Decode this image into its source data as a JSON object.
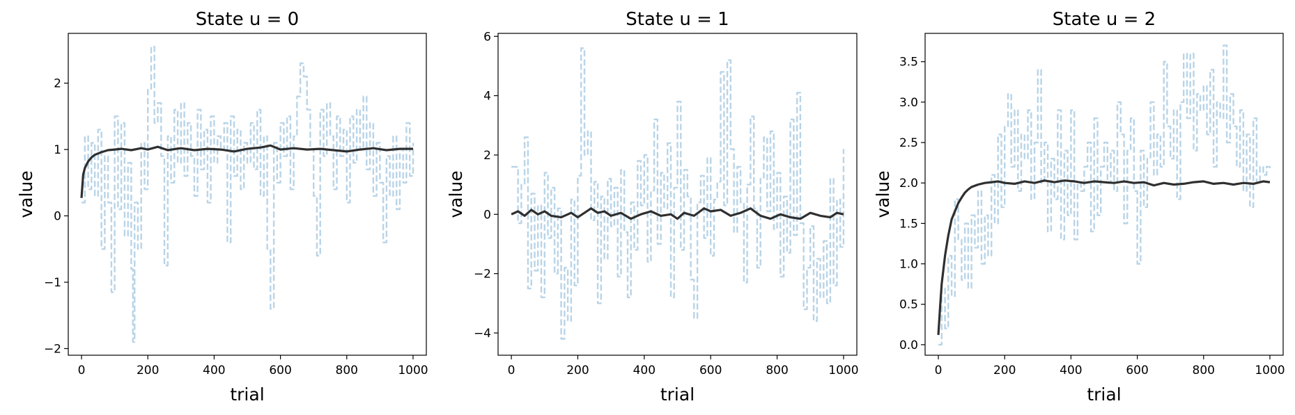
{
  "chart_data": [
    {
      "type": "line",
      "title": "State u = 0",
      "xlabel": "trial",
      "ylabel": "value",
      "xlim": [
        -40,
        1040
      ],
      "ylim": [
        -2.1,
        2.75
      ],
      "xticks": [
        0,
        200,
        400,
        600,
        800,
        1000
      ],
      "xtick_labels": [
        "0",
        "200",
        "400",
        "600",
        "800",
        "1000"
      ],
      "yticks": [
        -2,
        -1,
        0,
        1,
        2
      ],
      "ytick_labels": [
        "−2",
        "−1",
        "0",
        "1",
        "2"
      ],
      "grid": false,
      "series": [
        {
          "style": "dashed",
          "color": "#b9d4e7",
          "x": [
            0,
            10,
            20,
            30,
            40,
            50,
            60,
            70,
            80,
            90,
            100,
            110,
            120,
            130,
            140,
            150,
            155,
            160,
            170,
            180,
            190,
            200,
            210,
            220,
            230,
            240,
            250,
            260,
            270,
            280,
            290,
            300,
            310,
            320,
            330,
            340,
            350,
            360,
            370,
            380,
            390,
            400,
            410,
            420,
            430,
            440,
            450,
            460,
            470,
            480,
            490,
            500,
            510,
            520,
            530,
            540,
            550,
            560,
            570,
            580,
            590,
            600,
            610,
            620,
            630,
            640,
            650,
            660,
            670,
            680,
            690,
            700,
            710,
            720,
            730,
            740,
            750,
            760,
            770,
            780,
            790,
            800,
            810,
            820,
            830,
            840,
            850,
            860,
            870,
            880,
            890,
            900,
            910,
            920,
            930,
            940,
            950,
            960,
            970,
            980,
            990,
            1000
          ],
          "y": [
            0.2,
            1.2,
            0.4,
            1.1,
            0.3,
            1.3,
            -0.5,
            0.9,
            0.2,
            -1.15,
            1.5,
            0.1,
            1.4,
            -0.3,
            0.8,
            -0.8,
            -1.9,
            0.2,
            -0.5,
            1.1,
            0.4,
            1.9,
            2.55,
            1.4,
            1.7,
            0.9,
            -0.75,
            1.2,
            0.5,
            1.6,
            0.8,
            1.7,
            0.6,
            1.4,
            0.9,
            0.3,
            1.6,
            0.7,
            1.3,
            0.2,
            1.5,
            0.8,
            1.2,
            1.0,
            1.4,
            -0.4,
            1.5,
            0.6,
            1.3,
            0.4,
            1.1,
            0.8,
            1.4,
            0.7,
            1.6,
            0.3,
            1.2,
            -0.5,
            -1.4,
            1.1,
            0.5,
            1.4,
            0.9,
            1.5,
            0.4,
            1.2,
            1.8,
            2.3,
            2.1,
            1.6,
            1.0,
            0.3,
            -0.6,
            1.6,
            0.9,
            1.7,
            1.2,
            0.4,
            1.5,
            0.9,
            1.3,
            0.2,
            1.5,
            0.8,
            1.6,
            1.0,
            1.8,
            0.7,
            1.4,
            0.3,
            1.1,
            0.5,
            -0.4,
            0.9,
            0.3,
            1.2,
            0.1,
            1.0,
            0.5,
            1.4,
            0.6,
            1.1
          ]
        },
        {
          "style": "solid",
          "color": "#2f2f2f",
          "x": [
            0,
            5,
            10,
            20,
            30,
            40,
            60,
            80,
            100,
            120,
            150,
            180,
            200,
            230,
            260,
            300,
            340,
            380,
            420,
            460,
            500,
            540,
            570,
            600,
            640,
            680,
            720,
            760,
            800,
            840,
            880,
            920,
            960,
            1000
          ],
          "y": [
            0.27,
            0.62,
            0.72,
            0.82,
            0.88,
            0.92,
            0.96,
            0.99,
            1.0,
            1.01,
            0.99,
            1.02,
            1.0,
            1.04,
            0.99,
            1.02,
            0.99,
            1.01,
            1.0,
            0.97,
            1.01,
            1.03,
            1.06,
            1.0,
            1.02,
            1.0,
            1.01,
            0.99,
            0.97,
            1.0,
            1.02,
            0.99,
            1.01,
            1.01
          ]
        }
      ]
    },
    {
      "type": "line",
      "title": "State u = 1",
      "xlabel": "trial",
      "ylabel": "value",
      "xlim": [
        -40,
        1040
      ],
      "ylim": [
        -4.75,
        6.1
      ],
      "xticks": [
        0,
        200,
        400,
        600,
        800,
        1000
      ],
      "xtick_labels": [
        "0",
        "200",
        "400",
        "600",
        "800",
        "1000"
      ],
      "yticks": [
        -4,
        -2,
        0,
        2,
        4,
        6
      ],
      "ytick_labels": [
        "−4",
        "−2",
        "0",
        "2",
        "4",
        "6"
      ],
      "grid": false,
      "series": [
        {
          "style": "dashed",
          "color": "#b9d4e7",
          "x": [
            0,
            10,
            20,
            30,
            40,
            50,
            60,
            70,
            80,
            90,
            100,
            110,
            120,
            130,
            140,
            150,
            160,
            170,
            180,
            190,
            200,
            210,
            220,
            230,
            240,
            250,
            260,
            270,
            280,
            290,
            300,
            310,
            320,
            330,
            340,
            350,
            360,
            370,
            380,
            390,
            400,
            410,
            420,
            430,
            440,
            450,
            460,
            470,
            480,
            490,
            500,
            510,
            520,
            530,
            540,
            550,
            560,
            570,
            580,
            590,
            600,
            610,
            620,
            630,
            640,
            650,
            660,
            670,
            680,
            690,
            700,
            710,
            720,
            730,
            740,
            750,
            760,
            770,
            780,
            790,
            800,
            810,
            820,
            830,
            840,
            850,
            860,
            870,
            880,
            890,
            900,
            910,
            920,
            930,
            940,
            950,
            960,
            970,
            980,
            990,
            1000
          ],
          "y": [
            1.6,
            1.6,
            -0.3,
            1.0,
            2.6,
            -2.5,
            0.7,
            -1.9,
            0.3,
            -2.8,
            1.4,
            -0.8,
            0.9,
            -2.0,
            0.2,
            -4.2,
            -1.8,
            -3.6,
            0.5,
            -2.4,
            1.3,
            5.6,
            2.0,
            2.8,
            -0.2,
            1.1,
            -3.0,
            0.6,
            -1.5,
            1.2,
            -0.4,
            0.9,
            -2.1,
            1.5,
            -0.6,
            -2.8,
            0.4,
            -1.2,
            1.8,
            0.3,
            2.0,
            -1.6,
            0.8,
            3.2,
            -1.0,
            1.4,
            0.2,
            2.4,
            -2.8,
            0.9,
            3.8,
            -1.2,
            1.5,
            0.6,
            -2.2,
            -3.5,
            0.4,
            1.3,
            -0.8,
            1.9,
            -1.4,
            0.5,
            1.1,
            4.8,
            0.3,
            5.2,
            2.2,
            -0.6,
            1.6,
            0.4,
            -2.3,
            1.0,
            3.3,
            0.2,
            -1.8,
            1.2,
            2.6,
            0.1,
            2.8,
            -0.5,
            1.4,
            -2.1,
            0.6,
            -1.3,
            3.2,
            -0.7,
            4.1,
            -0.3,
            -3.2,
            -1.8,
            -0.4,
            -3.6,
            -1.5,
            -2.8,
            -0.9,
            -3.0,
            1.2,
            -2.4,
            0.5,
            -1.1,
            2.2
          ]
        },
        {
          "style": "solid",
          "color": "#2f2f2f",
          "x": [
            0,
            20,
            40,
            60,
            80,
            100,
            120,
            150,
            180,
            200,
            220,
            240,
            260,
            280,
            300,
            330,
            360,
            390,
            420,
            450,
            480,
            500,
            520,
            550,
            580,
            600,
            630,
            660,
            690,
            720,
            750,
            780,
            810,
            840,
            870,
            900,
            930,
            960,
            980,
            1000
          ],
          "y": [
            0.0,
            0.1,
            -0.05,
            0.15,
            0.0,
            0.1,
            -0.05,
            -0.1,
            0.05,
            -0.1,
            0.05,
            0.2,
            0.05,
            0.1,
            -0.05,
            0.05,
            -0.15,
            0.0,
            0.1,
            -0.05,
            0.0,
            -0.15,
            0.05,
            -0.05,
            0.2,
            0.1,
            0.15,
            -0.05,
            0.05,
            0.2,
            -0.05,
            -0.15,
            0.0,
            -0.1,
            -0.15,
            0.05,
            -0.05,
            -0.1,
            0.05,
            0.0
          ]
        }
      ]
    },
    {
      "type": "line",
      "title": "State u = 2",
      "xlabel": "trial",
      "ylabel": "value",
      "xlim": [
        -40,
        1040
      ],
      "ylim": [
        -0.13,
        3.85
      ],
      "xticks": [
        0,
        200,
        400,
        600,
        800,
        1000
      ],
      "xtick_labels": [
        "0",
        "200",
        "400",
        "600",
        "800",
        "1000"
      ],
      "yticks": [
        0.0,
        0.5,
        1.0,
        1.5,
        2.0,
        2.5,
        3.0,
        3.5
      ],
      "ytick_labels": [
        "0.0",
        "0.5",
        "1.0",
        "1.5",
        "2.0",
        "2.5",
        "3.0",
        "3.5"
      ],
      "grid": false,
      "series": [
        {
          "style": "dashed",
          "color": "#b9d4e7",
          "x": [
            0,
            10,
            20,
            30,
            40,
            50,
            60,
            70,
            80,
            90,
            100,
            110,
            120,
            130,
            140,
            150,
            160,
            170,
            180,
            190,
            200,
            210,
            220,
            230,
            240,
            250,
            260,
            270,
            280,
            290,
            300,
            310,
            320,
            330,
            340,
            350,
            360,
            370,
            380,
            390,
            400,
            410,
            420,
            430,
            440,
            450,
            460,
            470,
            480,
            490,
            500,
            510,
            520,
            530,
            540,
            550,
            560,
            570,
            580,
            590,
            600,
            610,
            620,
            630,
            640,
            650,
            660,
            670,
            680,
            690,
            700,
            710,
            720,
            730,
            740,
            750,
            760,
            770,
            780,
            790,
            800,
            810,
            820,
            830,
            840,
            850,
            860,
            870,
            880,
            890,
            900,
            910,
            920,
            930,
            940,
            950,
            960,
            970,
            980,
            990,
            1000
          ],
          "y": [
            0.0,
            0.7,
            0.2,
            1.1,
            0.6,
            1.8,
            1.3,
            0.8,
            1.5,
            0.7,
            1.6,
            1.2,
            1.9,
            1.0,
            1.6,
            1.1,
            2.1,
            1.5,
            2.6,
            1.7,
            2.7,
            3.1,
            2.2,
            2.9,
            1.9,
            2.6,
            2.3,
            2.9,
            1.8,
            2.5,
            3.4,
            2.0,
            2.5,
            1.4,
            2.3,
            1.8,
            2.9,
            1.3,
            2.4,
            1.6,
            2.9,
            1.3,
            2.0,
            1.9,
            2.2,
            2.5,
            1.4,
            2.8,
            1.6,
            2.2,
            2.5,
            2.0,
            2.4,
            1.9,
            3.0,
            2.6,
            1.5,
            2.4,
            2.8,
            1.9,
            1.0,
            2.4,
            1.7,
            2.3,
            3.0,
            2.1,
            2.6,
            2.2,
            3.5,
            2.7,
            2.3,
            2.9,
            1.8,
            3.0,
            3.6,
            2.8,
            3.6,
            2.4,
            3.1,
            2.9,
            3.2,
            2.6,
            3.4,
            2.2,
            3.0,
            2.8,
            3.7,
            2.5,
            3.1,
            2.7,
            2.2,
            2.9,
            1.9,
            2.6,
            1.7,
            2.8,
            2.0,
            2.2,
            2.1,
            2.2,
            2.15
          ]
        },
        {
          "style": "solid",
          "color": "#2f2f2f",
          "x": [
            0,
            5,
            10,
            20,
            30,
            40,
            50,
            60,
            70,
            80,
            90,
            100,
            120,
            140,
            160,
            180,
            200,
            230,
            260,
            290,
            320,
            350,
            380,
            410,
            440,
            470,
            500,
            530,
            560,
            590,
            620,
            650,
            680,
            710,
            740,
            770,
            800,
            830,
            860,
            890,
            920,
            950,
            980,
            1000
          ],
          "y": [
            0.12,
            0.45,
            0.75,
            1.1,
            1.35,
            1.55,
            1.65,
            1.75,
            1.82,
            1.88,
            1.92,
            1.95,
            1.98,
            2.0,
            2.01,
            2.02,
            2.0,
            1.99,
            2.02,
            2.0,
            2.03,
            2.01,
            2.03,
            2.02,
            2.0,
            2.02,
            2.01,
            2.0,
            2.02,
            2.0,
            2.01,
            1.97,
            2.0,
            1.98,
            1.99,
            2.01,
            2.02,
            1.99,
            2.0,
            1.98,
            2.0,
            1.99,
            2.02,
            2.01
          ]
        }
      ]
    }
  ]
}
